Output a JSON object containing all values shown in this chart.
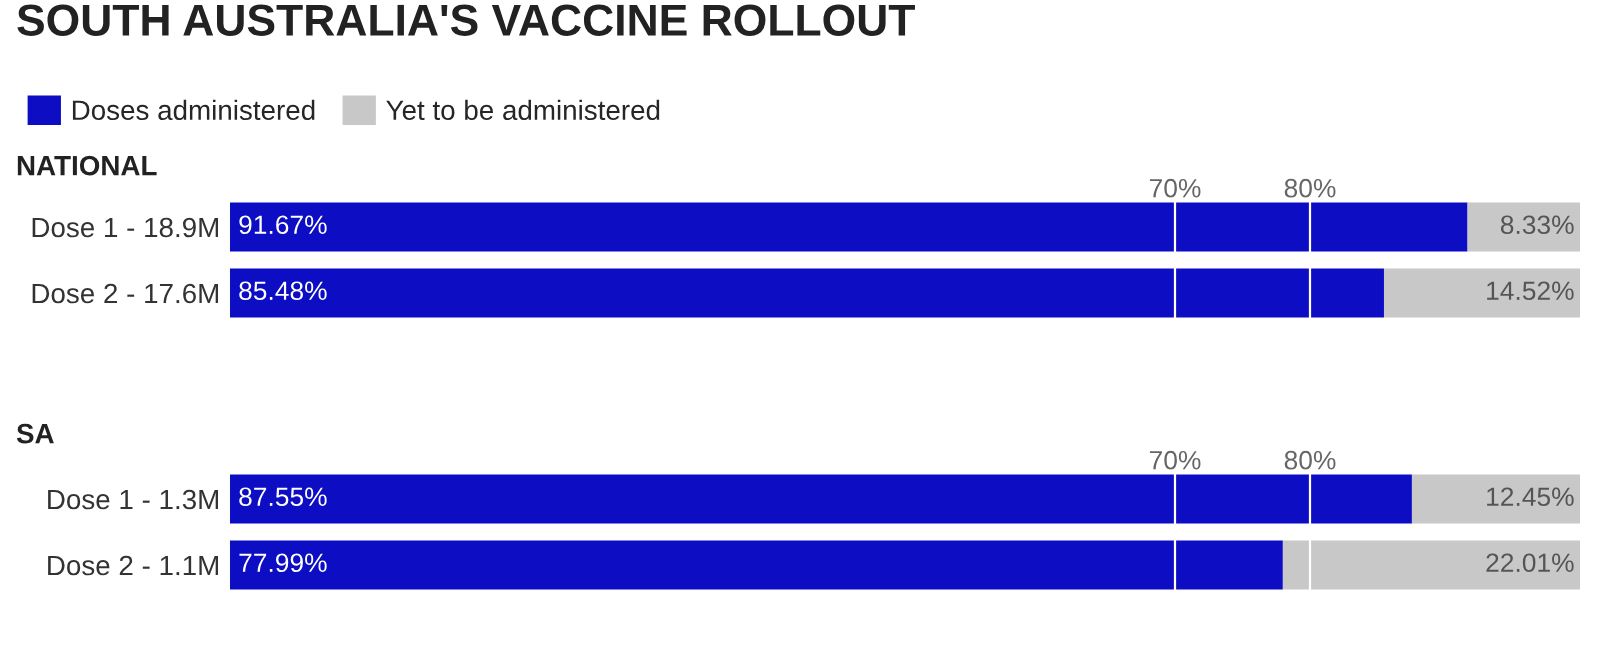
{
  "chart_data": [
    {
      "type": "bar",
      "orientation": "horizontal",
      "stacked": true,
      "title": "SOUTH AUSTRALIA'S VACCINE ROLLOUT",
      "subtitle": "NATIONAL",
      "categories": [
        "Dose 1 - 18.9M",
        "Dose 2 - 17.6M"
      ],
      "series": [
        {
          "name": "Doses administered",
          "color": "#0d0dc4",
          "values": [
            91.67,
            85.48
          ],
          "value_labels": [
            "91.67%",
            "85.48%"
          ]
        },
        {
          "name": "Yet to be administered",
          "color": "#c8c8c8",
          "values": [
            8.33,
            14.52
          ],
          "value_labels": [
            "8.33%",
            "14.52%"
          ]
        }
      ],
      "xlim": [
        0,
        100
      ],
      "tick_labels": "y",
      "legend": "top left",
      "grid": false,
      "ref_lines": [
        {
          "axis": "x",
          "value": 70,
          "label": "70%",
          "color": "#ffffff"
        },
        {
          "axis": "x",
          "value": 80,
          "label": "80%",
          "color": "#ffffff"
        }
      ]
    },
    {
      "type": "bar",
      "orientation": "horizontal",
      "stacked": true,
      "title": "SA",
      "categories": [
        "Dose 1 - 1.3M",
        "Dose 2 - 1.1M"
      ],
      "series": [
        {
          "color": "#0d0dc4",
          "values": [
            87.55,
            77.99
          ],
          "value_labels": [
            "87.55%",
            "77.99%"
          ]
        },
        {
          "color": "#c8c8c8",
          "values": [
            12.45,
            22.01
          ],
          "value_labels": [
            "12.45%",
            "22.01%"
          ]
        }
      ],
      "xlim": [
        0,
        100
      ],
      "tick_labels": "y",
      "grid": false,
      "ref_lines": [
        {
          "axis": "x",
          "value": 70,
          "label": "70%",
          "color": "#ffffff"
        },
        {
          "axis": "x",
          "value": 80,
          "label": "80%",
          "color": "#ffffff"
        }
      ]
    }
  ]
}
